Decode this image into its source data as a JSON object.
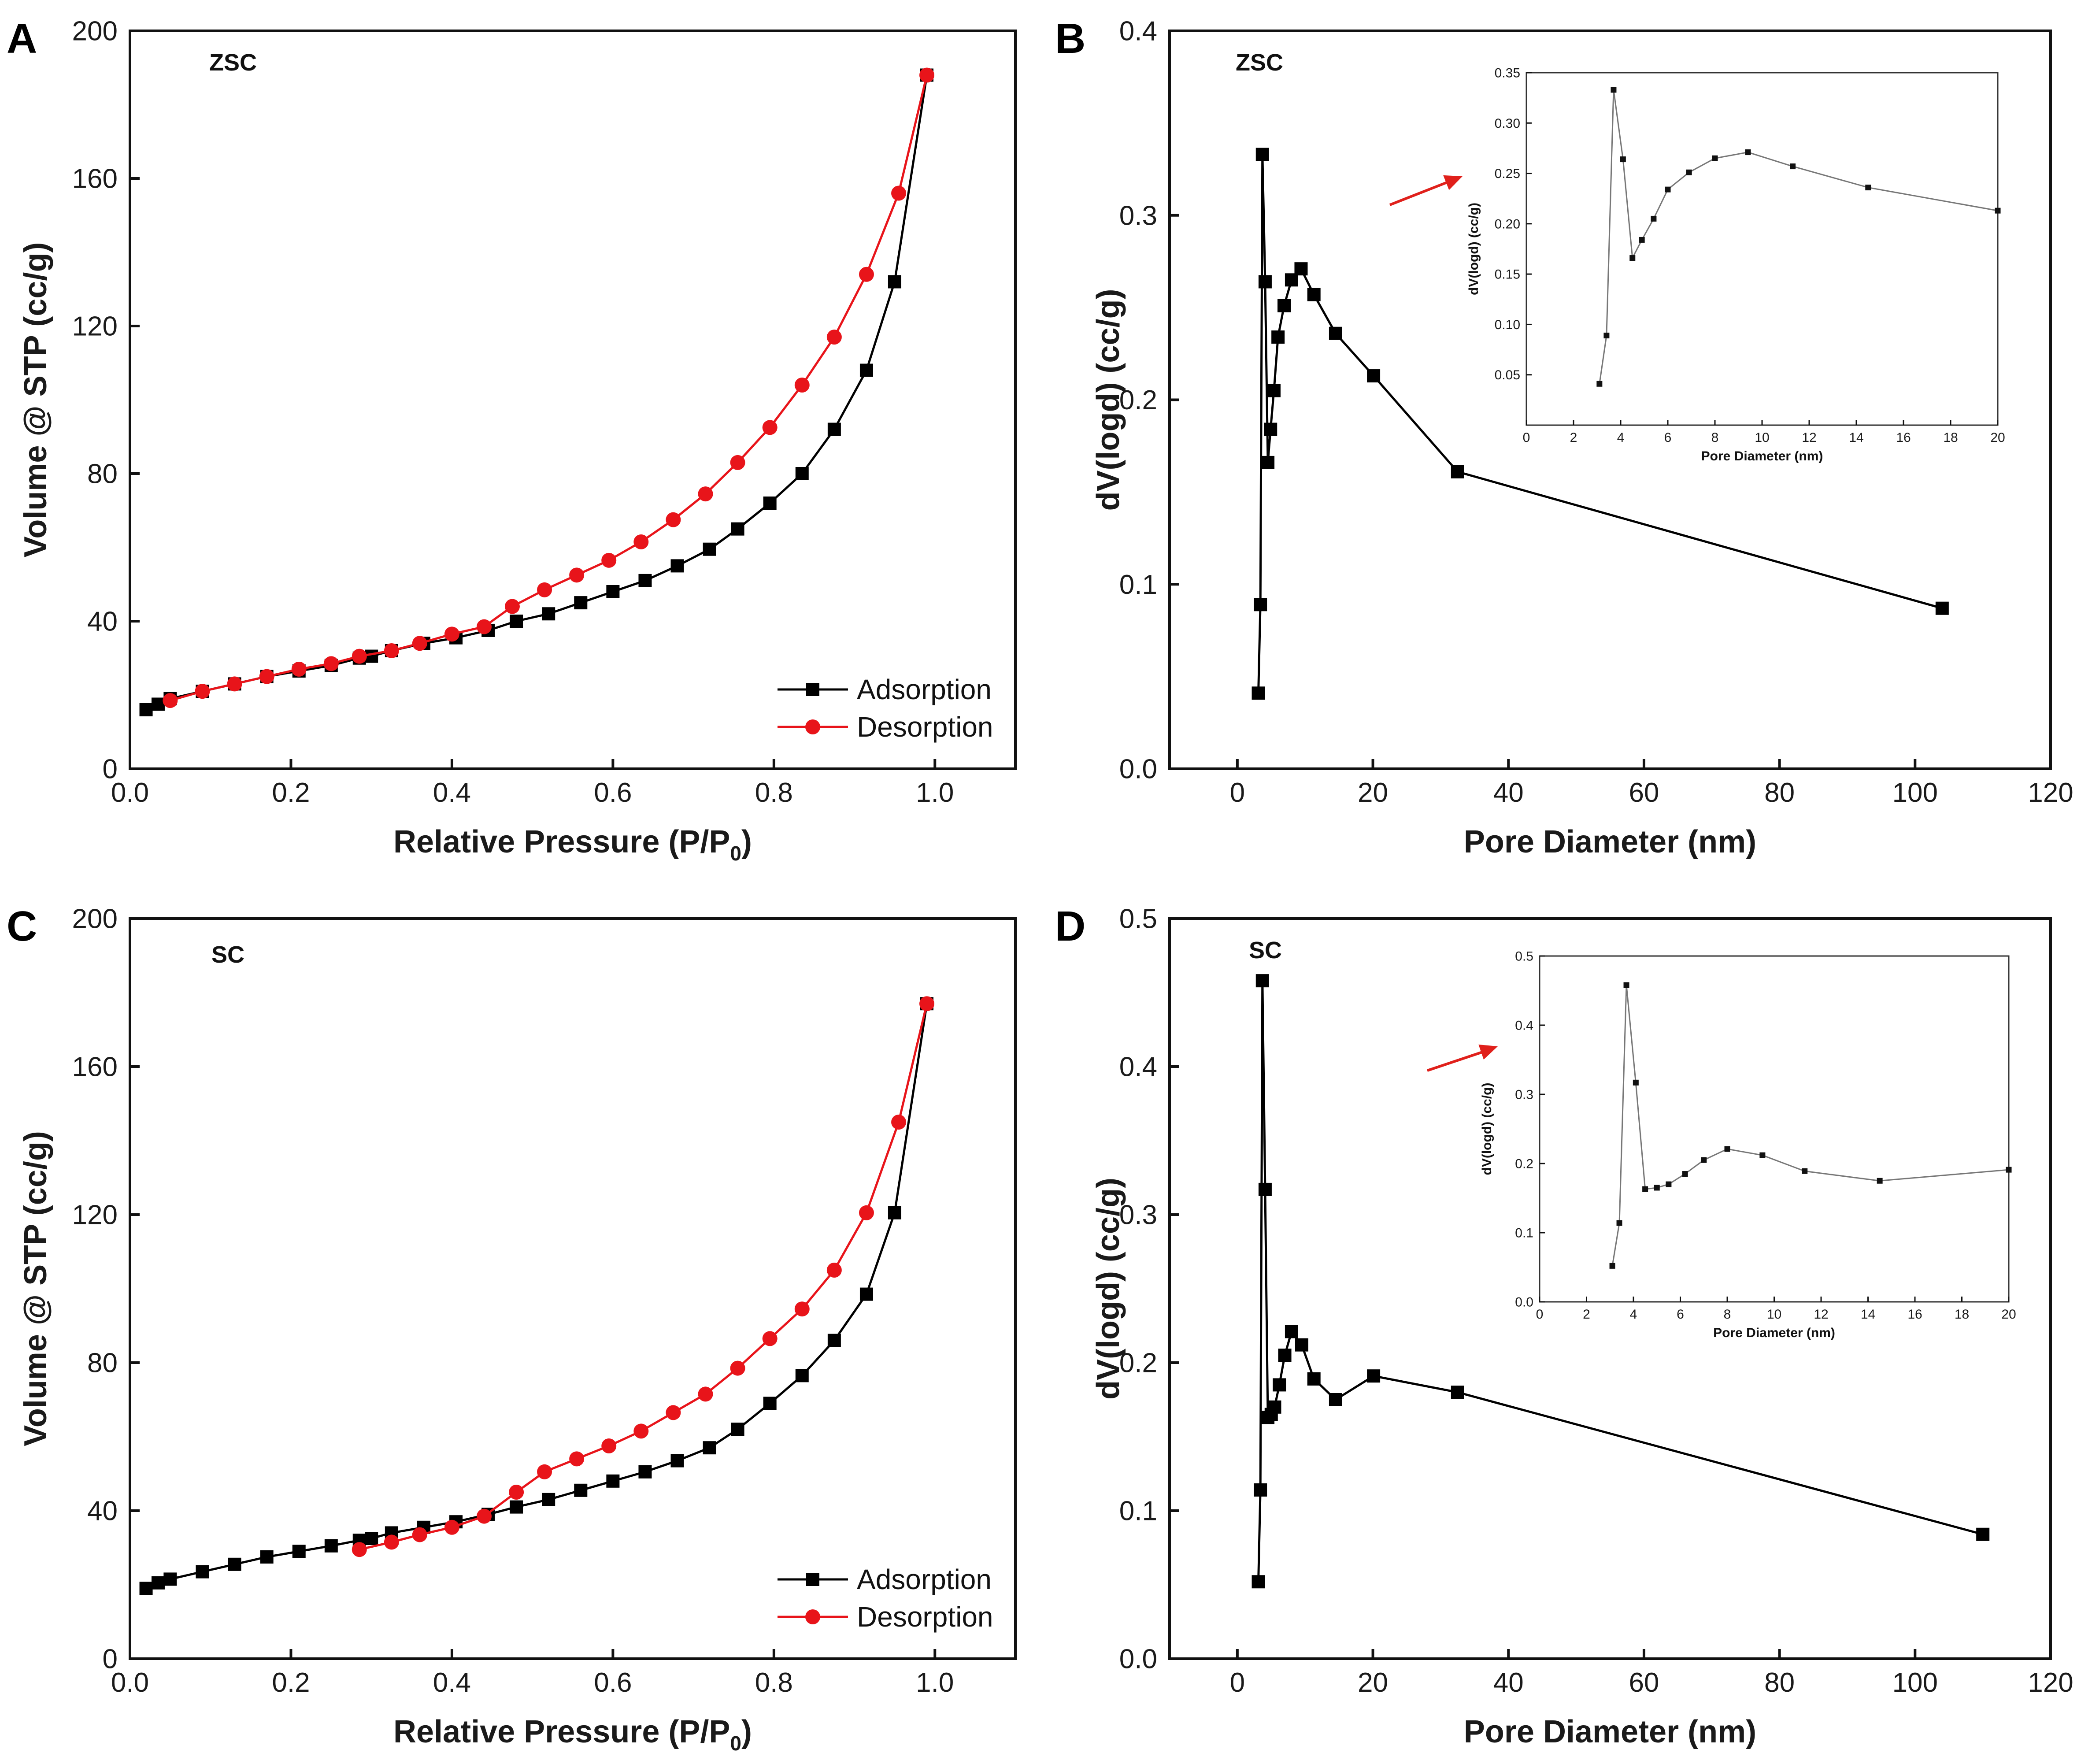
{
  "colors": {
    "adsorption": "#000000",
    "desorption": "#e8141a",
    "inset_line": "#777777",
    "arrow": "#e0201b"
  },
  "chart_data": [
    {
      "id": "A",
      "type": "line",
      "panel_label": "A",
      "sample_label": "ZSC",
      "xlabel": "Relative Pressure (P/P",
      "xlabel_sub": "0",
      "xlabel_suffix": ")",
      "ylabel": "Volume @ STP (cc/g)",
      "xlim": [
        0.0,
        1.1
      ],
      "ylim": [
        0,
        200
      ],
      "xticks": [
        0.0,
        0.2,
        0.4,
        0.6,
        0.8,
        1.0
      ],
      "xtick_labels": [
        "0.0",
        "0.2",
        "0.4",
        "0.6",
        "0.8",
        "1.0"
      ],
      "yticks": [
        0,
        40,
        80,
        120,
        160,
        200
      ],
      "ytick_labels": [
        "0",
        "40",
        "80",
        "120",
        "160",
        "200"
      ],
      "legend": "bottom-right",
      "grid": false,
      "series": [
        {
          "name": "Adsorption",
          "marker": "square",
          "color": "#000000",
          "x": [
            0.02,
            0.035,
            0.05,
            0.09,
            0.13,
            0.17,
            0.21,
            0.25,
            0.285,
            0.3,
            0.325,
            0.365,
            0.405,
            0.445,
            0.48,
            0.52,
            0.56,
            0.6,
            0.64,
            0.68,
            0.72,
            0.755,
            0.795,
            0.835,
            0.875,
            0.915,
            0.95,
            0.99
          ],
          "y": [
            16,
            17.5,
            19,
            21,
            23,
            25,
            26.5,
            28,
            30,
            30.5,
            32,
            34,
            35.5,
            37.5,
            40,
            42,
            45,
            48,
            51,
            55,
            59.5,
            65,
            72,
            80,
            92,
            108,
            132,
            188
          ]
        },
        {
          "name": "Desorption",
          "marker": "circle",
          "color": "#e8141a",
          "x": [
            0.99,
            0.955,
            0.915,
            0.875,
            0.835,
            0.795,
            0.755,
            0.715,
            0.675,
            0.635,
            0.595,
            0.555,
            0.515,
            0.475,
            0.44,
            0.4,
            0.36,
            0.325,
            0.285,
            0.25,
            0.21,
            0.17,
            0.13,
            0.09,
            0.05
          ],
          "y": [
            188,
            156,
            134,
            117,
            104,
            92.5,
            83,
            74.5,
            67.5,
            61.5,
            56.5,
            52.5,
            48.5,
            44,
            38.5,
            36.5,
            34,
            32,
            30.5,
            28.5,
            27,
            25,
            23,
            21,
            18.5
          ]
        }
      ]
    },
    {
      "id": "B",
      "type": "line",
      "panel_label": "B",
      "sample_label": "ZSC",
      "xlabel": "Pore Diameter (nm)",
      "ylabel": "dV(logd) (cc/g)",
      "xlim": [
        -10,
        120
      ],
      "ylim": [
        0.0,
        0.4
      ],
      "xticks": [
        0,
        20,
        40,
        60,
        80,
        100,
        120
      ],
      "xtick_labels": [
        "0",
        "20",
        "40",
        "60",
        "80",
        "100",
        "120"
      ],
      "yticks": [
        0.0,
        0.1,
        0.2,
        0.3,
        0.4
      ],
      "ytick_labels": [
        "0.0",
        "0.1",
        "0.2",
        "0.3",
        "0.4"
      ],
      "series": [
        {
          "marker": "square",
          "color": "#000000",
          "x": [
            3.1,
            3.4,
            3.7,
            4.1,
            4.5,
            4.9,
            5.4,
            6.0,
            6.9,
            8.0,
            9.4,
            11.3,
            14.5,
            20.1,
            32.5,
            104.0
          ],
          "y": [
            0.041,
            0.089,
            0.333,
            0.264,
            0.166,
            0.184,
            0.205,
            0.234,
            0.251,
            0.265,
            0.271,
            0.257,
            0.236,
            0.213,
            0.161,
            0.087
          ]
        }
      ],
      "inset": {
        "xlabel": "Pore Diameter (nm)",
        "ylabel": "dV(logd) (cc/g)",
        "xlim": [
          0,
          20
        ],
        "ylim": [
          0.0,
          0.35
        ],
        "xticks": [
          0,
          2,
          4,
          6,
          8,
          10,
          12,
          14,
          16,
          18,
          20
        ],
        "xtick_labels": [
          "0",
          "2",
          "4",
          "6",
          "8",
          "10",
          "12",
          "14",
          "16",
          "18",
          "20"
        ],
        "yticks": [
          0.05,
          0.1,
          0.15,
          0.2,
          0.25,
          0.3,
          0.35
        ],
        "ytick_labels": [
          "0.05",
          "0.10",
          "0.15",
          "0.20",
          "0.25",
          "0.30",
          "0.35"
        ],
        "x": [
          3.1,
          3.4,
          3.7,
          4.1,
          4.5,
          4.9,
          5.4,
          6.0,
          6.9,
          8.0,
          9.4,
          11.3,
          14.5,
          20.0
        ],
        "y": [
          0.041,
          0.089,
          0.333,
          0.264,
          0.166,
          0.184,
          0.205,
          0.234,
          0.251,
          0.265,
          0.271,
          0.257,
          0.236,
          0.213
        ]
      }
    },
    {
      "id": "C",
      "type": "line",
      "panel_label": "C",
      "sample_label": "SC",
      "xlabel": "Relative Pressure (P/P",
      "xlabel_sub": "0",
      "xlabel_suffix": ")",
      "ylabel": "Volume @ STP (cc/g)",
      "xlim": [
        0.0,
        1.1
      ],
      "ylim": [
        0,
        200
      ],
      "xticks": [
        0.0,
        0.2,
        0.4,
        0.6,
        0.8,
        1.0
      ],
      "xtick_labels": [
        "0.0",
        "0.2",
        "0.4",
        "0.6",
        "0.8",
        "1.0"
      ],
      "yticks": [
        0,
        40,
        80,
        120,
        160,
        200
      ],
      "ytick_labels": [
        "0",
        "40",
        "80",
        "120",
        "160",
        "200"
      ],
      "legend": "bottom-right",
      "grid": false,
      "series": [
        {
          "name": "Adsorption",
          "marker": "square",
          "color": "#000000",
          "x": [
            0.02,
            0.035,
            0.05,
            0.09,
            0.13,
            0.17,
            0.21,
            0.25,
            0.285,
            0.3,
            0.325,
            0.365,
            0.405,
            0.445,
            0.48,
            0.52,
            0.56,
            0.6,
            0.64,
            0.68,
            0.72,
            0.755,
            0.795,
            0.835,
            0.875,
            0.915,
            0.95,
            0.99
          ],
          "y": [
            19,
            20.5,
            21.5,
            23.5,
            25.5,
            27.5,
            29,
            30.5,
            32,
            32.5,
            34,
            35.5,
            37,
            39,
            41,
            43,
            45.5,
            48,
            50.5,
            53.5,
            57,
            62,
            69,
            76.5,
            86,
            98.5,
            120.5,
            177
          ]
        },
        {
          "name": "Desorption",
          "marker": "circle",
          "color": "#e8141a",
          "x": [
            0.99,
            0.955,
            0.915,
            0.875,
            0.835,
            0.795,
            0.755,
            0.715,
            0.675,
            0.635,
            0.595,
            0.555,
            0.515,
            0.48,
            0.44,
            0.4,
            0.36,
            0.325,
            0.285
          ],
          "y": [
            177,
            145,
            120.5,
            105,
            94.5,
            86.5,
            78.5,
            71.5,
            66.5,
            61.5,
            57.5,
            54,
            50.5,
            45,
            38.5,
            35.5,
            33.5,
            31.5,
            29.5
          ]
        }
      ]
    },
    {
      "id": "D",
      "type": "line",
      "panel_label": "D",
      "sample_label": "SC",
      "xlabel": "Pore Diameter (nm)",
      "ylabel": "dV(logd) (cc/g)",
      "xlim": [
        -10,
        120
      ],
      "ylim": [
        0.0,
        0.5
      ],
      "xticks": [
        0,
        20,
        40,
        60,
        80,
        100,
        120
      ],
      "xtick_labels": [
        "0",
        "20",
        "40",
        "60",
        "80",
        "100",
        "120"
      ],
      "yticks": [
        0.0,
        0.1,
        0.2,
        0.3,
        0.4,
        0.5
      ],
      "ytick_labels": [
        "0.0",
        "0.1",
        "0.2",
        "0.3",
        "0.4",
        "0.5"
      ],
      "series": [
        {
          "marker": "square",
          "color": "#000000",
          "x": [
            3.1,
            3.4,
            3.7,
            4.1,
            4.5,
            5.0,
            5.5,
            6.2,
            7.0,
            8.0,
            9.5,
            11.3,
            14.5,
            20.1,
            32.5,
            110.0
          ],
          "y": [
            0.052,
            0.114,
            0.458,
            0.317,
            0.163,
            0.165,
            0.17,
            0.185,
            0.205,
            0.221,
            0.212,
            0.189,
            0.175,
            0.191,
            0.18,
            0.084
          ]
        }
      ],
      "inset": {
        "xlabel": "Pore Diameter (nm)",
        "ylabel": "dV(logd) (cc/g)",
        "xlim": [
          0,
          20
        ],
        "ylim": [
          0.0,
          0.5
        ],
        "xticks": [
          0,
          2,
          4,
          6,
          8,
          10,
          12,
          14,
          16,
          18,
          20
        ],
        "xtick_labels": [
          "0",
          "2",
          "4",
          "6",
          "8",
          "10",
          "12",
          "14",
          "16",
          "18",
          "20"
        ],
        "yticks": [
          0.0,
          0.1,
          0.2,
          0.3,
          0.4,
          0.5
        ],
        "ytick_labels": [
          "0.0",
          "0.1",
          "0.2",
          "0.3",
          "0.4",
          "0.5"
        ],
        "x": [
          3.1,
          3.4,
          3.7,
          4.1,
          4.5,
          5.0,
          5.5,
          6.2,
          7.0,
          8.0,
          9.5,
          11.3,
          14.5,
          20.0
        ],
        "y": [
          0.052,
          0.114,
          0.458,
          0.317,
          0.163,
          0.165,
          0.17,
          0.185,
          0.205,
          0.221,
          0.212,
          0.189,
          0.175,
          0.191
        ]
      }
    }
  ]
}
